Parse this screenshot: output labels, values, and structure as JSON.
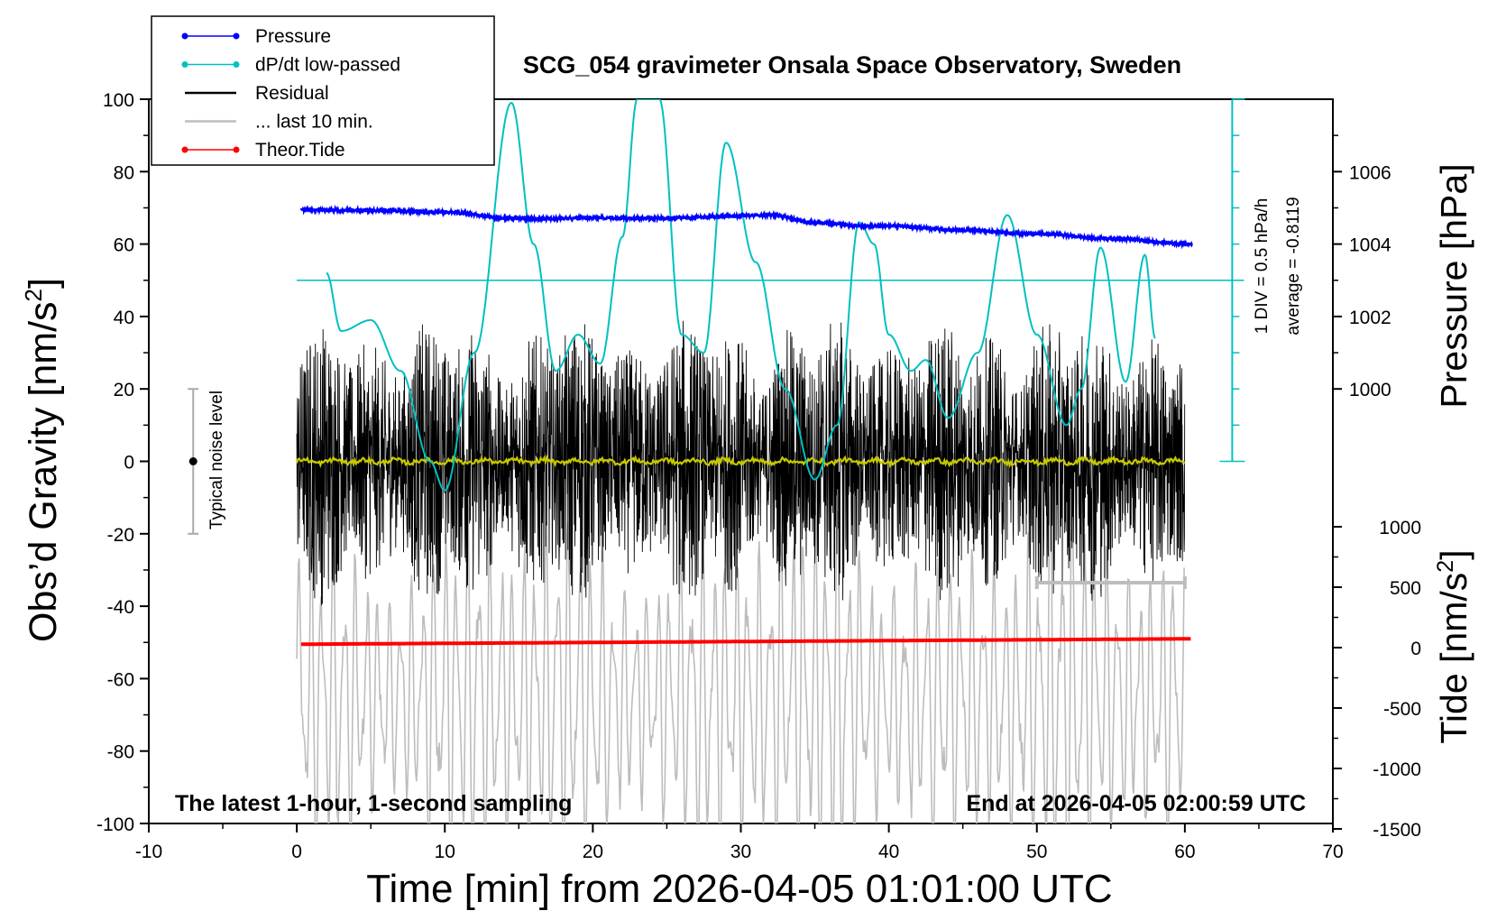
{
  "chart_data": {
    "type": "line",
    "title": "SCG_054 gravimeter Onsala Space Observatory, Sweden",
    "xlabel": "Time [min] from 2026-04-05 01:01:00 UTC",
    "ylabel_base": "Obs’d Gravity [nm/s",
    "ylabel_sup": "2",
    "ylabel_tail": "]",
    "y2label": "Pressure [hPa]",
    "y3label_base": "Tide [nm/s",
    "y3label_sup": "2",
    "y3label_tail": "]",
    "xlim": [
      -10,
      70
    ],
    "ylim": [
      -100,
      100
    ],
    "x_ticks": [
      "-10",
      "0",
      "10",
      "20",
      "30",
      "40",
      "50",
      "60",
      "70"
    ],
    "y_ticks": [
      "100",
      "80",
      "60",
      "40",
      "20",
      "0",
      "-20",
      "-40",
      "-60",
      "-80",
      "-100"
    ],
    "pressure_axis": {
      "ticks": [
        "1006",
        "1004",
        "1002",
        "1000"
      ],
      "values": [
        1006,
        1004,
        1002,
        1000
      ]
    },
    "tide_axis": {
      "ticks": [
        "1000",
        "500",
        "0",
        "-500",
        "-1000",
        "-1500"
      ],
      "values": [
        1000,
        500,
        0,
        -500,
        -1000,
        -1500
      ]
    },
    "legend": {
      "placement": "top-left",
      "entries": [
        {
          "label": "Pressure",
          "color": "#0000ff",
          "marker": true
        },
        {
          "label": "dP/dt low-passed",
          "color": "#00c0c0",
          "marker": true
        },
        {
          "label": "Residual",
          "color": "#000000",
          "marker": false
        },
        {
          "label": "... last 10 min.",
          "color": "#bdbdbd",
          "marker": false
        },
        {
          "label": "Theor.Tide",
          "color": "#ff0000",
          "marker": true
        }
      ]
    },
    "annotations": {
      "bottom_left": "The latest 1-hour, 1-second sampling",
      "bottom_right": "End at 2026-04-05 02:00:59 UTC",
      "noise_label": "Typical noise level",
      "dpdt_scale": "1 DIV = 0.5 hPa/h",
      "dpdt_average": "average = -0.8119"
    },
    "noise_bar": {
      "x": -7,
      "center": 0,
      "half_range": 20
    },
    "series": [
      {
        "name": "Pressure",
        "unit": "hPa",
        "color": "#0000ff",
        "x": [
          0.3,
          5,
          10,
          15,
          20,
          25,
          30,
          32,
          35,
          38,
          40,
          45,
          50,
          55,
          60.5
        ],
        "values": [
          1004.95,
          1004.93,
          1004.88,
          1004.7,
          1004.72,
          1004.72,
          1004.78,
          1004.8,
          1004.6,
          1004.5,
          1004.5,
          1004.38,
          1004.28,
          1004.15,
          1004.0
        ]
      },
      {
        "name": "dP/dt low-passed",
        "unit": "gravity-axis",
        "color": "#00c0c0",
        "x": [
          2,
          3,
          5,
          7,
          9,
          10,
          12,
          14.5,
          16,
          17.5,
          19,
          20.5,
          22,
          23,
          24.5,
          26,
          27.5,
          29,
          31,
          33,
          35,
          36.5,
          38,
          39,
          40,
          41.5,
          42.5,
          44,
          46,
          48,
          50,
          52,
          53,
          54.3,
          56,
          57.3,
          58
        ],
        "values": [
          52,
          36,
          39,
          25,
          0,
          -8,
          30,
          99,
          60,
          25,
          35,
          27,
          62,
          100,
          100,
          35,
          30,
          88,
          55,
          20,
          -5,
          10,
          66,
          60,
          35,
          25,
          28,
          12,
          30,
          68,
          35,
          10,
          20,
          59,
          22,
          57,
          34
        ]
      },
      {
        "name": "dP/dt reference",
        "color": "#00c0c0",
        "x": [
          0,
          64
        ],
        "values": [
          50,
          50
        ]
      },
      {
        "name": "Residual",
        "unit": "nm/s2",
        "color": "#000000",
        "x": [
          0,
          60
        ],
        "values": [
          0,
          0
        ],
        "amplitude": 42
      },
      {
        "name": "Residual (smoothed)",
        "unit": "nm/s2",
        "color": "#c8c800",
        "x": [
          0,
          60
        ],
        "values": [
          0,
          0
        ]
      },
      {
        "name": "... last 10 min.",
        "unit": "nm/s2",
        "color": "#bdbdbd",
        "x": [
          0,
          60
        ],
        "values": [
          -65,
          -65
        ],
        "amplitude": 45
      },
      {
        "name": "Theor.Tide",
        "unit": "nm/s2",
        "color": "#ff0000",
        "x": [
          0.3,
          60.5
        ],
        "values": [
          -50.5,
          -49
        ]
      }
    ]
  }
}
